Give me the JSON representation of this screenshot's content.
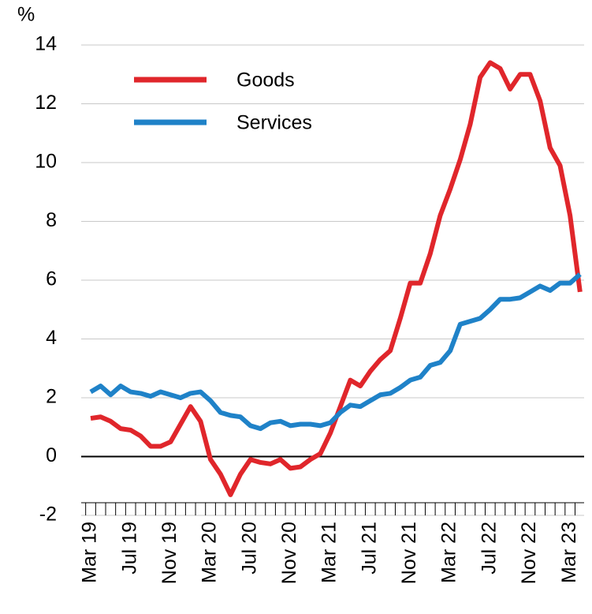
{
  "chart_data": {
    "type": "line",
    "y_label": "%",
    "categories": [
      "Mar 19",
      null,
      null,
      null,
      "Jul 19",
      null,
      null,
      null,
      "Nov 19",
      null,
      null,
      null,
      "Mar 20",
      null,
      null,
      null,
      "Jul 20",
      null,
      null,
      null,
      "Nov 20",
      null,
      null,
      null,
      "Mar 21",
      null,
      null,
      null,
      "Jul 21",
      null,
      null,
      null,
      "Nov 21",
      null,
      null,
      null,
      "Mar 22",
      null,
      null,
      null,
      "Jul 22",
      null,
      null,
      null,
      "Nov 22",
      null,
      null,
      null,
      "Mar 23",
      null
    ],
    "series": [
      {
        "name": "Goods",
        "color": "#e0262b",
        "values": [
          1.3,
          1.35,
          1.2,
          0.95,
          0.9,
          0.7,
          0.35,
          0.35,
          0.5,
          1.1,
          1.7,
          1.2,
          -0.1,
          -0.6,
          -1.3,
          -0.6,
          -0.1,
          -0.2,
          -0.25,
          -0.1,
          -0.4,
          -0.35,
          -0.1,
          0.1,
          0.8,
          1.7,
          2.6,
          2.4,
          2.9,
          3.3,
          3.6,
          4.7,
          5.9,
          5.9,
          6.9,
          8.2,
          9.1,
          10.1,
          11.3,
          12.9,
          13.4,
          13.2,
          12.5,
          13.0,
          13.0,
          12.1,
          10.5,
          9.9,
          8.2,
          5.6
        ]
      },
      {
        "name": "Services",
        "color": "#1f82c8",
        "values": [
          2.2,
          2.4,
          2.1,
          2.4,
          2.2,
          2.15,
          2.05,
          2.2,
          2.1,
          2.0,
          2.15,
          2.2,
          1.9,
          1.5,
          1.4,
          1.35,
          1.05,
          0.95,
          1.15,
          1.2,
          1.05,
          1.1,
          1.1,
          1.05,
          1.15,
          1.5,
          1.75,
          1.7,
          1.9,
          2.1,
          2.15,
          2.35,
          2.6,
          2.7,
          3.1,
          3.2,
          3.6,
          4.5,
          4.6,
          4.7,
          5.0,
          5.35,
          5.35,
          5.4,
          5.6,
          5.8,
          5.65,
          5.9,
          5.9,
          6.2
        ]
      }
    ],
    "ylim": [
      -2,
      14
    ],
    "yticks": [
      -2,
      0,
      2,
      4,
      6,
      8,
      10,
      12,
      14
    ],
    "grid": true,
    "legend": "upper-left"
  }
}
